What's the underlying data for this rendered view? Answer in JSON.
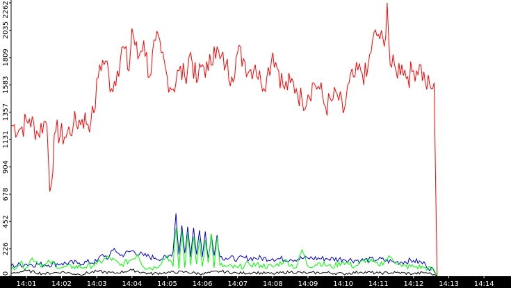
{
  "chart_data": {
    "type": "line",
    "title": "",
    "xlabel": "",
    "ylabel": "",
    "background": "#ffffff",
    "axis_color": "#000000",
    "x_unit": "time",
    "x_start": "14:00:34",
    "x_end": "14:14:46",
    "x_ticks": [
      "14:01",
      "14:02",
      "14:03",
      "14:04",
      "14:05",
      "14:06",
      "14:07",
      "14:08",
      "14:09",
      "14:10",
      "14:11",
      "14:12",
      "14:13",
      "14:14"
    ],
    "y_ticks": [
      0,
      226,
      452,
      678,
      904,
      1131,
      1357,
      1583,
      1809,
      2035,
      2262
    ],
    "ylim": [
      0,
      2262
    ],
    "grid": false,
    "legend": "none",
    "series": [
      {
        "color": "#ff0000",
        "x": [
          "14:00:34",
          "14:00:50",
          "14:01:05",
          "14:01:20",
          "14:01:30",
          "14:01:35",
          "14:01:40",
          "14:01:50",
          "14:02:05",
          "14:02:20",
          "14:02:35",
          "14:02:50",
          "14:02:55",
          "14:03:05",
          "14:03:15",
          "14:03:25",
          "14:03:35",
          "14:03:45",
          "14:03:55",
          "14:04:00",
          "14:04:10",
          "14:04:20",
          "14:04:30",
          "14:04:40",
          "14:04:50",
          "14:05:00",
          "14:05:10",
          "14:05:20",
          "14:05:30",
          "14:05:40",
          "14:05:50",
          "14:06:00",
          "14:06:10",
          "14:06:20",
          "14:06:30",
          "14:06:40",
          "14:06:50",
          "14:07:00",
          "14:07:10",
          "14:07:20",
          "14:07:30",
          "14:07:40",
          "14:07:50",
          "14:08:00",
          "14:08:10",
          "14:08:20",
          "14:08:30",
          "14:08:40",
          "14:08:50",
          "14:09:00",
          "14:09:10",
          "14:09:20",
          "14:09:30",
          "14:09:40",
          "14:09:50",
          "14:10:00",
          "14:10:10",
          "14:10:20",
          "14:10:30",
          "14:10:40",
          "14:10:50",
          "14:11:00",
          "14:11:10",
          "14:11:15",
          "14:11:20",
          "14:11:30",
          "14:11:40",
          "14:11:50",
          "14:12:00",
          "14:12:10",
          "14:12:20",
          "14:12:30",
          "14:12:35",
          "14:12:40"
        ],
        "values": [
          1250,
          1220,
          1300,
          1180,
          1280,
          1250,
          700,
          1200,
          1150,
          1250,
          1300,
          1280,
          1350,
          1750,
          1780,
          1550,
          1700,
          1900,
          1700,
          2050,
          1800,
          1950,
          1650,
          1950,
          1850,
          1650,
          1550,
          1700,
          1650,
          1850,
          1600,
          1750,
          1700,
          1900,
          1800,
          1750,
          1650,
          1850,
          1800,
          1700,
          1750,
          1600,
          1650,
          1850,
          1700,
          1550,
          1600,
          1550,
          1450,
          1500,
          1600,
          1550,
          1400,
          1450,
          1500,
          1350,
          1600,
          1650,
          1700,
          1650,
          1950,
          2000,
          1900,
          2262,
          1750,
          1700,
          1750,
          1650,
          1700,
          1750,
          1600,
          1550,
          1600,
          0
        ]
      },
      {
        "color": "#0000cc",
        "x": [
          "14:00:34",
          "14:01:00",
          "14:01:30",
          "14:02:00",
          "14:02:30",
          "14:03:00",
          "14:03:10",
          "14:03:20",
          "14:03:30",
          "14:03:40",
          "14:04:00",
          "14:04:20",
          "14:04:40",
          "14:05:00",
          "14:05:10",
          "14:05:15",
          "14:05:20",
          "14:05:25",
          "14:05:30",
          "14:05:35",
          "14:05:40",
          "14:05:45",
          "14:05:50",
          "14:05:55",
          "14:06:00",
          "14:06:05",
          "14:06:10",
          "14:06:15",
          "14:06:20",
          "14:06:25",
          "14:06:30",
          "14:06:40",
          "14:07:00",
          "14:07:30",
          "14:08:00",
          "14:08:30",
          "14:09:00",
          "14:09:30",
          "14:10:00",
          "14:10:30",
          "14:11:00",
          "14:11:30",
          "14:12:00",
          "14:12:20",
          "14:12:35",
          "14:12:40"
        ],
        "values": [
          85,
          100,
          95,
          105,
          110,
          120,
          180,
          150,
          230,
          170,
          210,
          170,
          150,
          150,
          200,
          520,
          180,
          420,
          190,
          410,
          160,
          400,
          180,
          380,
          160,
          370,
          150,
          350,
          170,
          340,
          160,
          150,
          145,
          150,
          145,
          140,
          150,
          145,
          140,
          130,
          140,
          115,
          130,
          100,
          40,
          0
        ]
      },
      {
        "color": "#00ff00",
        "x": [
          "14:00:34",
          "14:00:50",
          "14:01:00",
          "14:01:10",
          "14:01:30",
          "14:01:40",
          "14:02:00",
          "14:02:20",
          "14:02:40",
          "14:03:00",
          "14:03:20",
          "14:03:40",
          "14:04:00",
          "14:04:10",
          "14:04:20",
          "14:04:40",
          "14:05:00",
          "14:05:10",
          "14:05:15",
          "14:05:20",
          "14:05:25",
          "14:05:30",
          "14:05:35",
          "14:05:40",
          "14:05:45",
          "14:05:50",
          "14:05:55",
          "14:06:00",
          "14:06:05",
          "14:06:10",
          "14:06:15",
          "14:06:20",
          "14:06:25",
          "14:06:30",
          "14:06:40",
          "14:07:00",
          "14:07:20",
          "14:07:40",
          "14:08:00",
          "14:08:20",
          "14:08:40",
          "14:08:50",
          "14:09:00",
          "14:09:20",
          "14:09:40",
          "14:10:00",
          "14:10:20",
          "14:10:40",
          "14:11:00",
          "14:11:20",
          "14:11:40",
          "14:12:00",
          "14:12:20",
          "14:12:35",
          "14:12:40"
        ],
        "values": [
          60,
          110,
          70,
          150,
          80,
          120,
          70,
          80,
          75,
          100,
          160,
          90,
          140,
          180,
          75,
          70,
          170,
          80,
          400,
          60,
          380,
          70,
          350,
          90,
          330,
          100,
          310,
          80,
          300,
          110,
          350,
          70,
          320,
          90,
          80,
          70,
          100,
          90,
          75,
          130,
          70,
          220,
          80,
          110,
          75,
          120,
          80,
          140,
          90,
          160,
          80,
          80,
          70,
          50,
          0
        ]
      },
      {
        "color": "#000000",
        "x": [
          "14:00:34",
          "14:01:00",
          "14:01:30",
          "14:02:00",
          "14:02:30",
          "14:03:00",
          "14:03:30",
          "14:04:00",
          "14:04:30",
          "14:05:00",
          "14:05:30",
          "14:06:00",
          "14:06:30",
          "14:07:00",
          "14:07:30",
          "14:08:00",
          "14:08:30",
          "14:09:00",
          "14:09:30",
          "14:10:00",
          "14:10:30",
          "14:11:00",
          "14:11:30",
          "14:12:00",
          "14:12:20",
          "14:12:35",
          "14:12:40"
        ],
        "values": [
          25,
          45,
          20,
          35,
          15,
          40,
          25,
          50,
          20,
          30,
          35,
          20,
          40,
          25,
          30,
          20,
          35,
          25,
          30,
          20,
          35,
          25,
          30,
          20,
          30,
          15,
          0
        ]
      }
    ]
  }
}
